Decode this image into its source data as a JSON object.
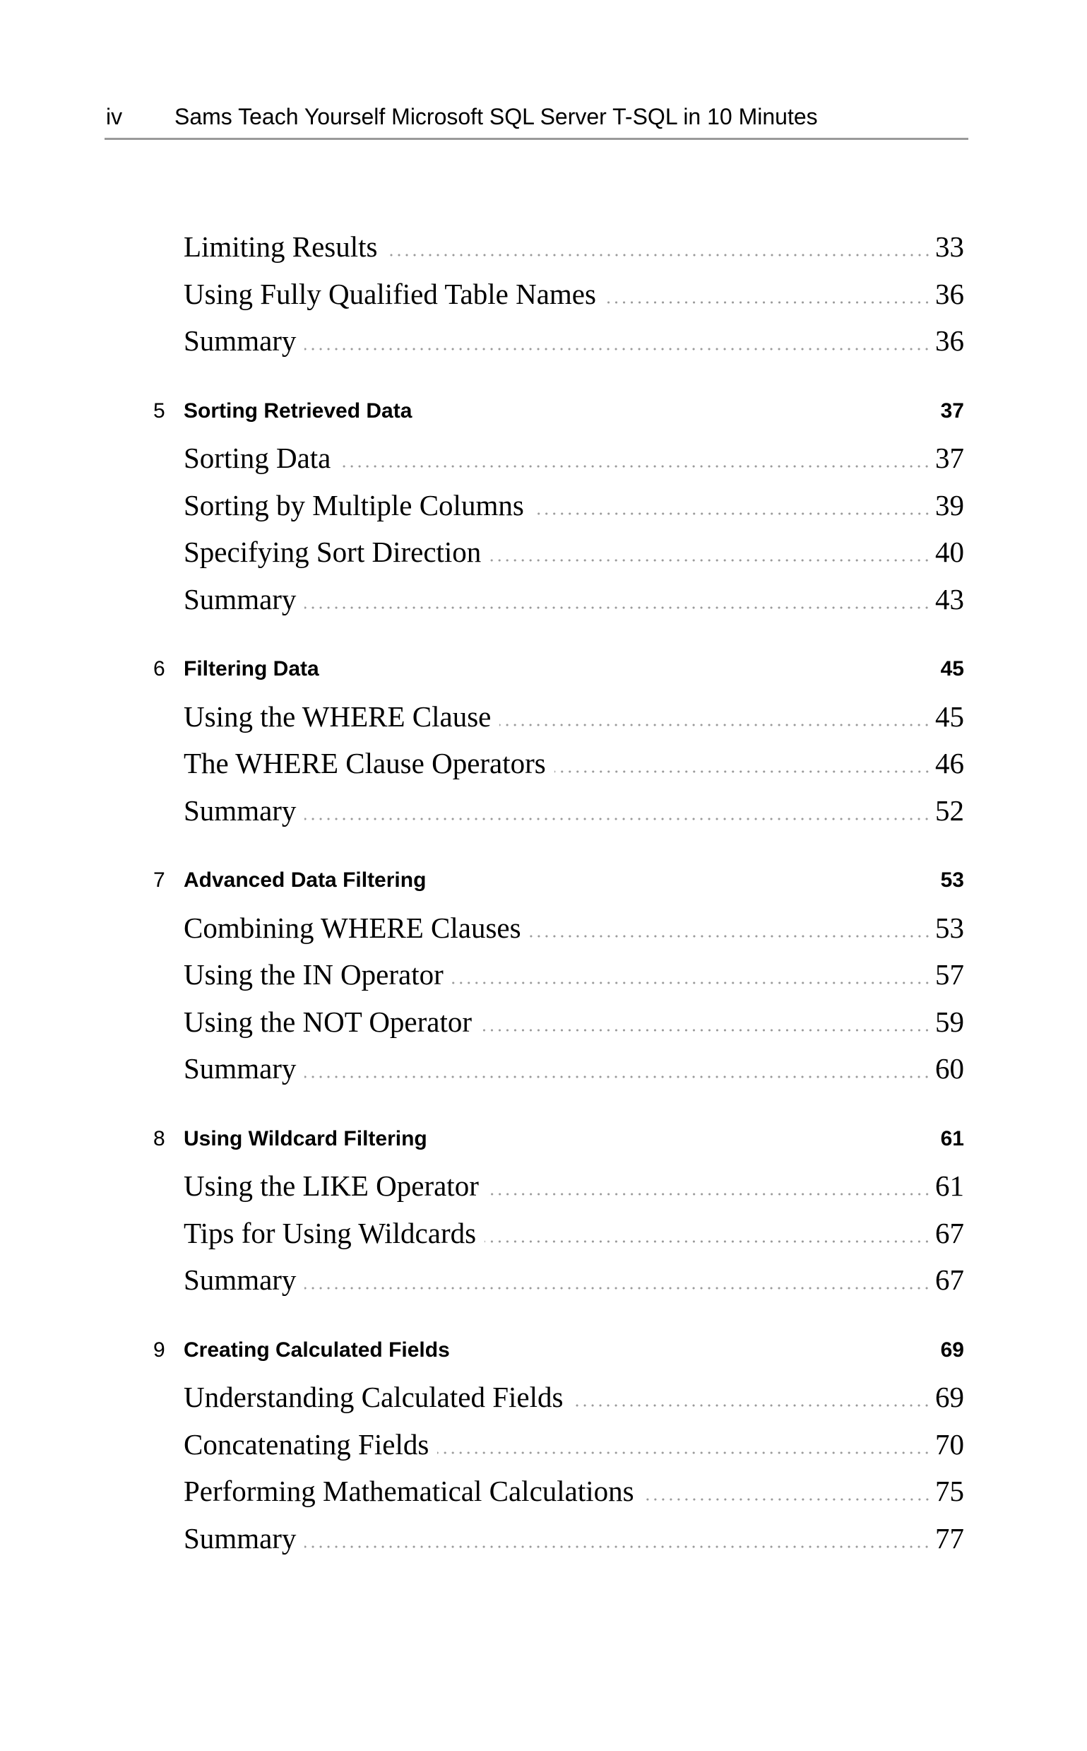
{
  "header": {
    "page_number": "iv",
    "book_title": "Sams Teach Yourself Microsoft SQL Server T-SQL in 10 Minutes"
  },
  "toc": [
    {
      "type": "entry",
      "label": "Limiting Results",
      "page": "33"
    },
    {
      "type": "entry",
      "label": "Using Fully Qualified Table Names",
      "page": "36"
    },
    {
      "type": "entry",
      "label": "Summary",
      "page": "36"
    },
    {
      "type": "chapter",
      "number": "5",
      "label": "Sorting Retrieved Data",
      "page": "37"
    },
    {
      "type": "entry",
      "label": "Sorting Data",
      "page": "37"
    },
    {
      "type": "entry",
      "label": "Sorting by Multiple Columns",
      "page": "39"
    },
    {
      "type": "entry",
      "label": "Specifying Sort Direction",
      "page": "40"
    },
    {
      "type": "entry",
      "label": "Summary",
      "page": "43"
    },
    {
      "type": "chapter",
      "number": "6",
      "label": "Filtering Data",
      "page": "45"
    },
    {
      "type": "entry",
      "label": "Using the WHERE Clause",
      "page": "45"
    },
    {
      "type": "entry",
      "label": "The WHERE Clause Operators",
      "page": "46"
    },
    {
      "type": "entry",
      "label": "Summary",
      "page": "52"
    },
    {
      "type": "chapter",
      "number": "7",
      "label": "Advanced Data Filtering",
      "page": "53"
    },
    {
      "type": "entry",
      "label": "Combining WHERE Clauses",
      "page": "53"
    },
    {
      "type": "entry",
      "label": "Using the IN Operator",
      "page": "57"
    },
    {
      "type": "entry",
      "label": "Using the NOT Operator",
      "page": "59"
    },
    {
      "type": "entry",
      "label": "Summary",
      "page": "60"
    },
    {
      "type": "chapter",
      "number": "8",
      "label": "Using Wildcard Filtering",
      "page": "61"
    },
    {
      "type": "entry",
      "label": "Using the LIKE Operator",
      "page": "61"
    },
    {
      "type": "entry",
      "label": "Tips for Using Wildcards",
      "page": "67"
    },
    {
      "type": "entry",
      "label": "Summary",
      "page": "67"
    },
    {
      "type": "chapter",
      "number": "9",
      "label": "Creating Calculated Fields",
      "page": "69"
    },
    {
      "type": "entry",
      "label": "Understanding Calculated Fields",
      "page": "69"
    },
    {
      "type": "entry",
      "label": "Concatenating Fields",
      "page": "70"
    },
    {
      "type": "entry",
      "label": "Performing Mathematical Calculations",
      "page": "75"
    },
    {
      "type": "entry",
      "label": "Summary",
      "page": "77"
    }
  ]
}
